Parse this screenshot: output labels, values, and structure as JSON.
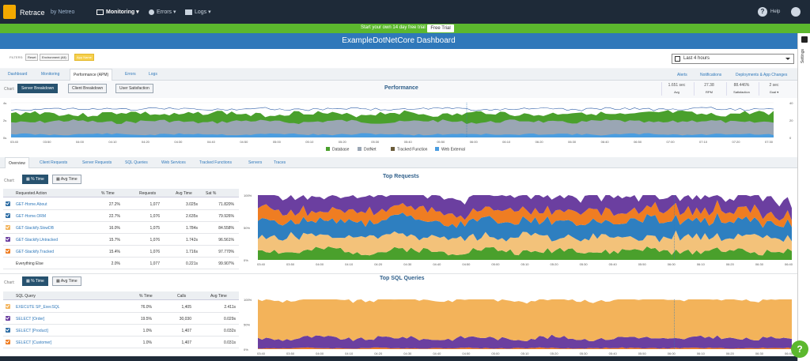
{
  "app": {
    "name": "Retrace",
    "by": "by Netreo"
  },
  "nav": {
    "monitoring": "Monitoring",
    "errors": "Errors",
    "logs": "Logs",
    "help": "Help"
  },
  "trial": {
    "text": "Start your own 14 day free trial",
    "button": "Free Trial"
  },
  "dashboard": {
    "title": "ExampleDotNetCore Dashboard"
  },
  "settings": {
    "label": "Settings"
  },
  "filters": {
    "label": "FILTERS:",
    "reset": "Reset",
    "environment": "Environment (All)",
    "app": "App Name"
  },
  "time_range": "Last 4 hours",
  "tabs": [
    "Dashboard",
    "Monitoring",
    "Performance (APM)",
    "Errors",
    "Logs"
  ],
  "right_tabs": [
    "Alerts",
    "Notifications",
    "Deployments & App Changes"
  ],
  "toolbar": {
    "chart_label": "Chart:",
    "buttons": [
      "Server Breakdown",
      "Client Breakdown",
      "User Satisfaction"
    ]
  },
  "stats": [
    {
      "value": "1.651 sec",
      "label": "Avg"
    },
    {
      "value": "27.38",
      "label": "RPM"
    },
    {
      "value": "88.446%",
      "label": "Satisfaction"
    },
    {
      "value": "2 sec",
      "label": "Goal"
    }
  ],
  "performance": {
    "title": "Performance",
    "y_left": [
      "4s",
      "2s",
      "0s"
    ],
    "y_right": [
      "40",
      "20",
      "0"
    ],
    "x_ticks": [
      "03:40",
      "03:50",
      "04:00",
      "04:10",
      "04:20",
      "04:30",
      "04:40",
      "04:50",
      "05:00",
      "05:10",
      "05:20",
      "05:30",
      "05:40",
      "05:50",
      "06:00",
      "06:10",
      "06:20",
      "06:30",
      "06:40",
      "06:50",
      "07:00",
      "07:10",
      "07:20",
      "07:30"
    ],
    "legend": [
      {
        "name": "Database",
        "color": "#4aa02c"
      },
      {
        "name": "DotNet",
        "color": "#9aa6b4"
      },
      {
        "name": "Tracked Function",
        "color": "#6a5b3a"
      },
      {
        "name": "Web External",
        "color": "#4a9de0"
      }
    ]
  },
  "subtabs": [
    "Overview",
    "Client Requests",
    "Server Requests",
    "SQL Queries",
    "Web Services",
    "Tracked Functions",
    "Servers",
    "Traces"
  ],
  "requests": {
    "toolbar": {
      "chart_label": "Chart:",
      "buttons": [
        "% Time",
        "Avg Time"
      ]
    },
    "title": "Top Requests",
    "headers": [
      "Requested Action",
      "% Time",
      "Requests",
      "Avg Time",
      "Sat %"
    ],
    "rows": [
      {
        "name": "GET-Home.About",
        "pct": "27.2%",
        "count": "1,077",
        "avg": "3.025s",
        "sat": "71.820%",
        "color": "#2e6da4"
      },
      {
        "name": "GET-Home.ORM",
        "pct": "22.7%",
        "count": "1,076",
        "avg": "2.635s",
        "sat": "79.926%",
        "color": "#2e6da4"
      },
      {
        "name": "GET-Stackify.SlowDB",
        "pct": "16.0%",
        "count": "1,075",
        "avg": "1.784s",
        "sat": "84.558%",
        "color": "#f3b35a"
      },
      {
        "name": "GET-Stackify.Untracked",
        "pct": "15.7%",
        "count": "1,076",
        "avg": "1.742s",
        "sat": "96.561%",
        "color": "#6b3fa0"
      },
      {
        "name": "GET-Stackify.Tracked",
        "pct": "15.4%",
        "count": "1,076",
        "avg": "1.716s",
        "sat": "97.770%",
        "color": "#ef7d22"
      },
      {
        "name": "Everything Else",
        "pct": "2.0%",
        "count": "1,077",
        "avg": "0.221s",
        "sat": "99.907%",
        "color": ""
      }
    ],
    "y_ticks": [
      "100%",
      "50%",
      "0%"
    ],
    "x_ticks": [
      "03:40",
      "03:50",
      "04:00",
      "04:10",
      "04:20",
      "04:30",
      "04:40",
      "04:50",
      "05:00",
      "05:10",
      "05:20",
      "05:30",
      "05:40",
      "05:50",
      "06:00",
      "06:10",
      "06:20",
      "06:30",
      "06:40"
    ]
  },
  "sql": {
    "toolbar": {
      "chart_label": "Chart:",
      "buttons": [
        "% Time",
        "Avg Time"
      ]
    },
    "title": "Top SQL Queries",
    "headers": [
      "SQL Query",
      "% Time",
      "Calls",
      "Avg Time"
    ],
    "rows": [
      {
        "name": "EXECUTE SP_ExecSQL",
        "pct": "76.0%",
        "count": "1,405",
        "avg": "2.411s",
        "color": "#f3b35a"
      },
      {
        "name": "SELECT [Order]",
        "pct": "19.5%",
        "count": "30,030",
        "avg": "0.029s",
        "color": "#6b3fa0"
      },
      {
        "name": "SELECT [Product]",
        "pct": "1.0%",
        "count": "1,407",
        "avg": "0.032s",
        "color": "#2e6da4"
      },
      {
        "name": "SELECT [Customer]",
        "pct": "1.0%",
        "count": "1,407",
        "avg": "0.031s",
        "color": "#ef7d22"
      }
    ],
    "y_ticks": [
      "100%",
      "50%",
      "0%"
    ],
    "x_ticks": [
      "03:40",
      "03:50",
      "04:00",
      "04:10",
      "04:20",
      "04:30",
      "04:40",
      "04:50",
      "05:00",
      "05:10",
      "05:20",
      "05:30",
      "05:40",
      "05:50",
      "06:00",
      "06:10",
      "06:20",
      "06:30",
      "06:40"
    ]
  }
}
